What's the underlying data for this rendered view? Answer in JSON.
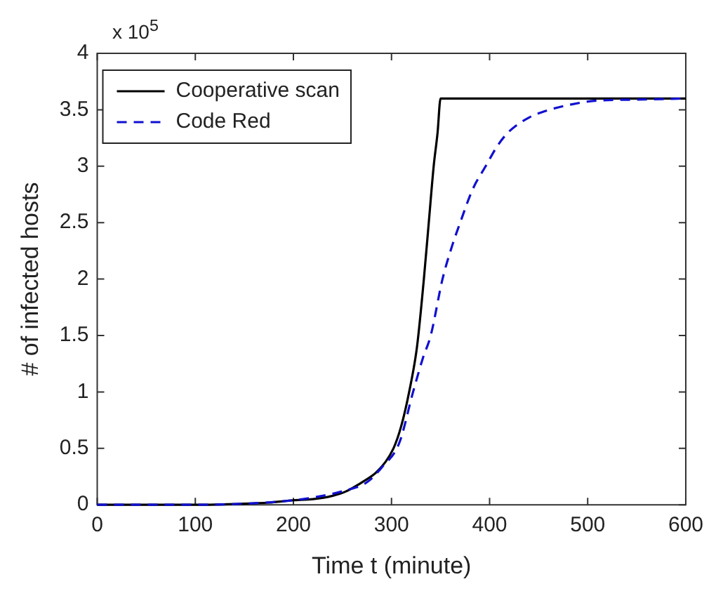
{
  "chart_data": {
    "type": "line",
    "xlabel": "Time t (minute)",
    "ylabel": "# of infected hosts",
    "annotations": [
      "x 10$^{5}$"
    ],
    "xlim": [
      0,
      600
    ],
    "xticks": [
      0,
      100,
      200,
      300,
      400,
      500,
      600
    ],
    "ylim": [
      0,
      4
    ],
    "yticks": [
      0,
      0.5,
      1,
      1.5,
      2,
      2.5,
      3,
      3.5,
      4
    ],
    "legend": "top left",
    "grid": false,
    "marker": "none",
    "series": [
      {
        "name": "Cooperative scan",
        "color": "#000000",
        "line_style": "solid",
        "x": [
          0,
          100,
          150,
          175,
          200,
          220,
          240,
          254,
          270,
          286,
          302,
          310,
          318,
          326,
          333,
          338,
          343,
          347,
          350,
          400,
          500,
          600
        ],
        "values": [
          0,
          0,
          0.01,
          0.02,
          0.04,
          0.05,
          0.08,
          0.12,
          0.2,
          0.3,
          0.5,
          0.7,
          1,
          1.4,
          2,
          2.5,
          3,
          3.3,
          3.6,
          3.6,
          3.6,
          3.6
        ]
      },
      {
        "name": "Code Red",
        "color": "#1010d0",
        "line_style": "dashed",
        "x": [
          0,
          100,
          150,
          200,
          230,
          250,
          275,
          290,
          308,
          322,
          332,
          340,
          352,
          362,
          370,
          383,
          396,
          408,
          419,
          440,
          461,
          485,
          507,
          550,
          600
        ],
        "values": [
          0,
          0,
          0.01,
          0.04,
          0.08,
          0.12,
          0.2,
          0.33,
          0.55,
          1,
          1.3,
          1.5,
          2,
          2.3,
          2.5,
          2.8,
          3,
          3.18,
          3.3,
          3.43,
          3.5,
          3.55,
          3.58,
          3.59,
          3.6
        ]
      }
    ]
  }
}
